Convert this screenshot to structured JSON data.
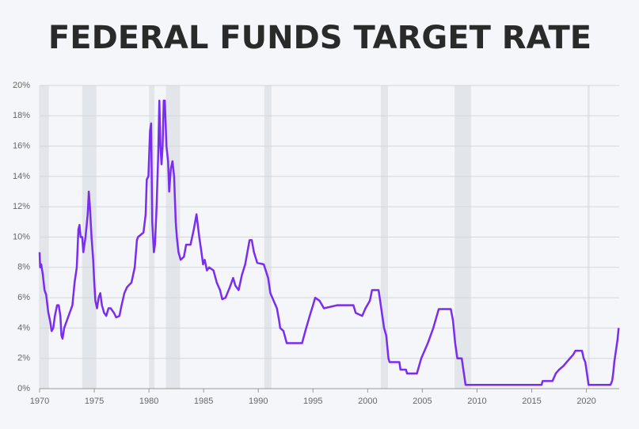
{
  "chart_data": {
    "type": "line",
    "title": "FEDERAL FUNDS TARGET RATE",
    "x": [
      1970.0,
      1970.05,
      1970.15,
      1970.3,
      1970.45,
      1970.6,
      1970.8,
      1970.95,
      1971.1,
      1971.25,
      1971.4,
      1971.6,
      1971.75,
      1971.9,
      1972.0,
      1972.1,
      1972.25,
      1972.5,
      1972.75,
      1973.0,
      1973.2,
      1973.4,
      1973.55,
      1973.65,
      1973.75,
      1973.9,
      1974.0,
      1974.2,
      1974.4,
      1974.5,
      1974.6,
      1974.75,
      1974.9,
      1975.0,
      1975.1,
      1975.25,
      1975.4,
      1975.55,
      1975.7,
      1975.9,
      1976.1,
      1976.3,
      1976.5,
      1976.8,
      1977.0,
      1977.3,
      1977.5,
      1977.75,
      1978.0,
      1978.4,
      1978.7,
      1978.9,
      1979.0,
      1979.5,
      1979.7,
      1979.8,
      1979.95,
      1980.1,
      1980.2,
      1980.3,
      1980.45,
      1980.55,
      1980.7,
      1980.85,
      1980.95,
      1981.05,
      1981.15,
      1981.25,
      1981.35,
      1981.45,
      1981.6,
      1981.75,
      1981.85,
      1982.0,
      1982.15,
      1982.3,
      1982.45,
      1982.55,
      1982.7,
      1982.9,
      1983.2,
      1983.4,
      1983.8,
      1984.1,
      1984.35,
      1984.6,
      1984.8,
      1984.95,
      1985.1,
      1985.3,
      1985.5,
      1985.9,
      1986.2,
      1986.5,
      1986.7,
      1987.0,
      1987.4,
      1987.7,
      1987.9,
      1988.2,
      1988.5,
      1988.8,
      1989.2,
      1989.4,
      1989.6,
      1989.9,
      1990.5,
      1990.9,
      1991.1,
      1991.4,
      1991.7,
      1991.9,
      1992.0,
      1992.3,
      1992.6,
      1994.0,
      1994.3,
      1994.5,
      1994.7,
      1995.0,
      1995.2,
      1995.6,
      1996.0,
      1997.2,
      1998.7,
      1998.9,
      1999.5,
      1999.8,
      2000.2,
      2000.4,
      2001.0,
      2001.2,
      2001.5,
      2001.7,
      2001.9,
      2002.0,
      2002.9,
      2003.0,
      2003.5,
      2003.6,
      2004.5,
      2004.9,
      2005.5,
      2006.0,
      2006.5,
      2007.6,
      2007.8,
      2008.0,
      2008.2,
      2008.6,
      2008.8,
      2008.95,
      2015.9,
      2016.0,
      2016.9,
      2017.2,
      2017.5,
      2017.9,
      2018.2,
      2018.5,
      2018.8,
      2019.0,
      2019.6,
      2019.75,
      2019.9,
      2020.2,
      2022.2,
      2022.35,
      2022.45,
      2022.55,
      2022.7,
      2022.85,
      2022.95
    ],
    "series": [
      {
        "name": "Federal funds target rate",
        "color": "#7a2cf0",
        "values": [
          9.0,
          8.0,
          8.2,
          7.5,
          6.5,
          6.2,
          5.0,
          4.5,
          3.8,
          4.0,
          4.8,
          5.5,
          5.5,
          4.8,
          3.5,
          3.3,
          4.0,
          4.5,
          5.0,
          5.5,
          7.0,
          8.0,
          10.5,
          10.8,
          10.0,
          10.0,
          9.0,
          10.0,
          11.5,
          13.0,
          12.0,
          10.0,
          8.5,
          7.0,
          5.8,
          5.3,
          6.0,
          6.3,
          5.5,
          5.0,
          4.8,
          5.3,
          5.3,
          5.0,
          4.7,
          4.8,
          5.5,
          6.3,
          6.7,
          7.0,
          8.0,
          9.8,
          10.0,
          10.3,
          11.5,
          13.8,
          14.0,
          17.0,
          17.5,
          11.0,
          9.0,
          9.5,
          12.0,
          15.5,
          19.0,
          16.0,
          14.8,
          16.0,
          19.0,
          19.0,
          16.0,
          15.0,
          13.0,
          14.5,
          15.0,
          14.0,
          11.0,
          10.0,
          9.0,
          8.5,
          8.7,
          9.5,
          9.5,
          10.5,
          11.5,
          10.0,
          9.0,
          8.2,
          8.5,
          7.8,
          8.0,
          7.8,
          7.0,
          6.5,
          5.9,
          6.0,
          6.7,
          7.3,
          6.8,
          6.5,
          7.5,
          8.2,
          9.8,
          9.8,
          9.0,
          8.3,
          8.2,
          7.3,
          6.3,
          5.8,
          5.3,
          4.5,
          4.0,
          3.8,
          3.0,
          3.0,
          3.8,
          4.3,
          4.8,
          5.5,
          6.0,
          5.8,
          5.3,
          5.5,
          5.5,
          5.0,
          4.8,
          5.3,
          5.8,
          6.5,
          6.5,
          5.5,
          4.0,
          3.5,
          2.0,
          1.75,
          1.75,
          1.25,
          1.25,
          1.0,
          1.0,
          2.0,
          3.0,
          4.0,
          5.25,
          5.25,
          4.5,
          3.0,
          2.0,
          2.0,
          1.0,
          0.25,
          0.25,
          0.5,
          0.5,
          1.0,
          1.25,
          1.5,
          1.75,
          2.0,
          2.25,
          2.5,
          2.5,
          2.0,
          1.75,
          0.25,
          0.25,
          0.5,
          1.0,
          1.75,
          2.5,
          3.25,
          4.0
        ]
      }
    ],
    "recessions": [
      [
        1969.95,
        1970.85
      ],
      [
        1973.9,
        1975.2
      ],
      [
        1980.0,
        1980.5
      ],
      [
        1981.55,
        1982.85
      ],
      [
        1990.55,
        1991.2
      ],
      [
        2001.2,
        2001.85
      ],
      [
        2007.95,
        2009.45
      ],
      [
        2020.1,
        2020.3
      ]
    ],
    "recession_color": "#e2e5e9",
    "xlim": [
      1970,
      2023
    ],
    "xticks": [
      1970,
      1975,
      1980,
      1985,
      1990,
      1995,
      2000,
      2005,
      2010,
      2015,
      2020
    ],
    "ylim": [
      0,
      20
    ],
    "yticks": [
      {
        "value": 0,
        "label": "0%"
      },
      {
        "value": 2,
        "label": "2%"
      },
      {
        "value": 4,
        "label": "4%"
      },
      {
        "value": 6,
        "label": "6%"
      },
      {
        "value": 8,
        "label": "8%"
      },
      {
        "value": 10,
        "label": "10%"
      },
      {
        "value": 12,
        "label": "12%"
      },
      {
        "value": 14,
        "label": "14%"
      },
      {
        "value": 16,
        "label": "16%"
      },
      {
        "value": 18,
        "label": "18%"
      },
      {
        "value": 20,
        "label": "20%"
      }
    ],
    "grid": true
  }
}
